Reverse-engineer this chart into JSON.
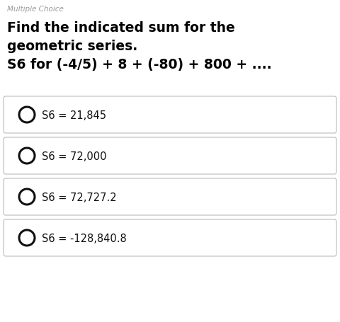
{
  "header": "Multiple Choice",
  "question_line1": "Find the indicated sum for the",
  "question_line2": "geometric series.",
  "question_line3": "S6 for (-4/5) + 8 + (-80) + 800 + ....",
  "options": [
    "S6 = 21,845",
    "S6 = 72,000",
    "S6 = 72,727.2",
    "S6 = -128,840.8"
  ],
  "bg_color": "#ffffff",
  "header_color": "#999999",
  "question_color": "#000000",
  "option_text_color": "#111111",
  "box_edge_color": "#bbbbbb",
  "circle_edge_color": "#111111",
  "circle_fill_color": "#ffffff",
  "header_fontsize": 7.5,
  "question_fontsize": 13.5,
  "option_fontsize": 10.5,
  "fig_width": 4.8,
  "fig_height": 4.56,
  "dpi": 100
}
